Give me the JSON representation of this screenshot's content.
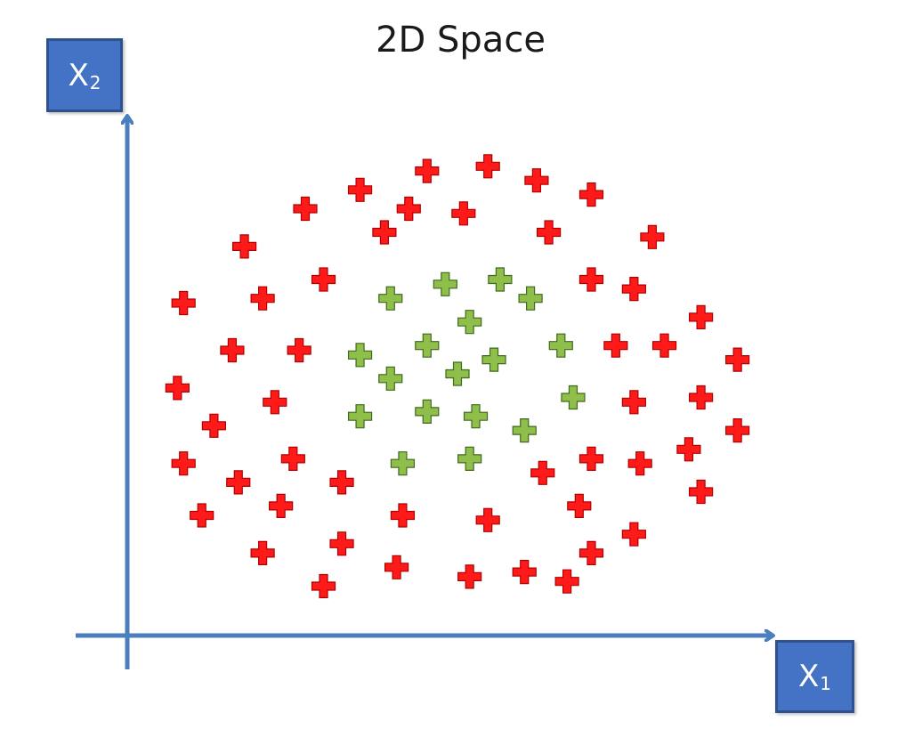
{
  "title": "2D Space",
  "axes": {
    "x": {
      "label_main": "X",
      "label_sub": "1"
    },
    "y": {
      "label_main": "X",
      "label_sub": "2"
    }
  },
  "colors": {
    "axis": "#4a7ebf",
    "axis_label_box": "#4472c4",
    "class_outer_fill": "#ff1a1a",
    "class_outer_stroke": "#b00000",
    "class_inner_fill": "#8fbf4a",
    "class_inner_stroke": "#3f6a1c"
  },
  "chart_data": {
    "type": "scatter",
    "title": "2D Space",
    "xlabel": "X1",
    "ylabel": "X2",
    "xlim": [
      0,
      100
    ],
    "ylim": [
      0,
      100
    ],
    "marker": "plus",
    "grid": false,
    "groups": [
      {
        "color": "red",
        "points": [
          [
            45,
            93
          ],
          [
            55,
            94
          ],
          [
            63,
            91
          ],
          [
            72,
            88
          ],
          [
            34,
            89
          ],
          [
            25,
            85
          ],
          [
            42,
            85
          ],
          [
            51,
            84
          ],
          [
            65,
            80
          ],
          [
            38,
            80
          ],
          [
            82,
            79
          ],
          [
            15,
            77
          ],
          [
            28,
            70
          ],
          [
            72,
            70
          ],
          [
            79,
            68
          ],
          [
            5,
            65
          ],
          [
            18,
            66
          ],
          [
            90,
            62
          ],
          [
            13,
            55
          ],
          [
            24,
            55
          ],
          [
            76,
            56
          ],
          [
            84,
            56
          ],
          [
            96,
            53
          ],
          [
            4,
            47
          ],
          [
            20,
            44
          ],
          [
            79,
            44
          ],
          [
            90,
            45
          ],
          [
            10,
            39
          ],
          [
            96,
            38
          ],
          [
            5,
            31
          ],
          [
            23,
            32
          ],
          [
            72,
            32
          ],
          [
            80,
            31
          ],
          [
            88,
            34
          ],
          [
            14,
            27
          ],
          [
            31,
            27
          ],
          [
            64,
            29
          ],
          [
            90,
            25
          ],
          [
            8,
            20
          ],
          [
            21,
            22
          ],
          [
            41,
            20
          ],
          [
            55,
            19
          ],
          [
            70,
            22
          ],
          [
            79,
            16
          ],
          [
            18,
            12
          ],
          [
            31,
            14
          ],
          [
            72,
            12
          ],
          [
            40,
            9
          ],
          [
            52,
            7
          ],
          [
            61,
            8
          ],
          [
            68,
            6
          ],
          [
            28,
            5
          ]
        ]
      },
      {
        "color": "green",
        "points": [
          [
            48,
            69
          ],
          [
            57,
            70
          ],
          [
            39,
            66
          ],
          [
            62,
            66
          ],
          [
            52,
            61
          ],
          [
            45,
            56
          ],
          [
            67,
            56
          ],
          [
            34,
            54
          ],
          [
            56,
            53
          ],
          [
            50,
            50
          ],
          [
            39,
            49
          ],
          [
            69,
            45
          ],
          [
            45,
            42
          ],
          [
            53,
            41
          ],
          [
            34,
            41
          ],
          [
            61,
            38
          ],
          [
            41,
            31
          ],
          [
            52,
            32
          ]
        ]
      }
    ]
  }
}
